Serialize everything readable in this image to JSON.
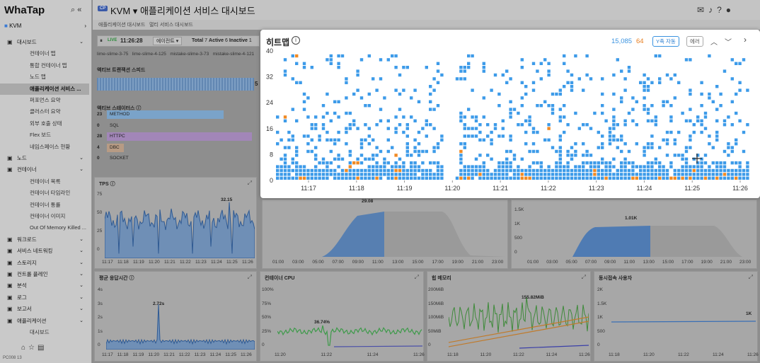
{
  "app": {
    "logo": "WhaTap",
    "project": "KVM",
    "project_badge": "CP",
    "title": "애플리케이션 서비스 대시보드"
  },
  "tabs": [
    "애플리케이션 대시보드",
    "멀티 서비스 대시보드"
  ],
  "sidebar": {
    "project": "KVM",
    "items": [
      {
        "label": "대시보드",
        "level": 0,
        "icon": "dashboard-icon"
      },
      {
        "label": "컨테이너 맵",
        "level": 1
      },
      {
        "label": "통합 컨테이너 맵",
        "level": 1
      },
      {
        "label": "노드 맵",
        "level": 1
      },
      {
        "label": "애플리케이션 서비스 ...",
        "level": 1,
        "active": true
      },
      {
        "label": "퍼포먼스 요약",
        "level": 1
      },
      {
        "label": "클러스터 요약",
        "level": 1
      },
      {
        "label": "외부 호출 상태",
        "level": 1
      },
      {
        "label": "Flex 보드",
        "level": 1
      },
      {
        "label": "네임스페이스 현황",
        "level": 1
      },
      {
        "label": "노드",
        "level": 0,
        "icon": "node-icon"
      },
      {
        "label": "컨테이너",
        "level": 0,
        "icon": "container-icon"
      },
      {
        "label": "컨테이너 목록",
        "level": 1
      },
      {
        "label": "컨테이너 타임라인",
        "level": 1
      },
      {
        "label": "컨테이너 통률",
        "level": 1
      },
      {
        "label": "컨테이너 이미지",
        "level": 1
      },
      {
        "label": "Out Of Memory Killed ...",
        "level": 1
      },
      {
        "label": "워크로드",
        "level": 0,
        "icon": "workload-icon"
      },
      {
        "label": "서비스 네트워킹",
        "level": 0,
        "icon": "network-icon"
      },
      {
        "label": "스토리지",
        "level": 0,
        "icon": "storage-icon"
      },
      {
        "label": "컨트롤 플레인",
        "level": 0,
        "icon": "control-plane-icon"
      },
      {
        "label": "분석",
        "level": 0,
        "icon": "analysis-icon"
      },
      {
        "label": "로그",
        "level": 0,
        "icon": "log-icon"
      },
      {
        "label": "보고서",
        "level": 0,
        "icon": "report-icon"
      },
      {
        "label": "애플리케이션",
        "level": 0,
        "icon": "code-icon"
      },
      {
        "label": "대시보드",
        "level": 1
      }
    ],
    "footer": "PC008 13"
  },
  "live": {
    "label": "LIVE",
    "time": "11:26:28",
    "filter": "에이전트",
    "total_label": "Total",
    "total": "7",
    "active_label": "Active",
    "active": "6",
    "inactive_label": "Inactive",
    "inactive": "1"
  },
  "agents": [
    "lime-slime-3-75",
    "lime-slime-4-125",
    "mistake-slime-3-73",
    "mistake-slime-4-121"
  ],
  "active_tx": {
    "title": "액티브 트랜잭션 스피드",
    "value": "5"
  },
  "active_status": {
    "title": "액티브 스테이터스",
    "rows": [
      {
        "count": "23",
        "label": "METHOD"
      },
      {
        "count": "0",
        "label": "SQL"
      },
      {
        "count": "28",
        "label": "HTTPC"
      },
      {
        "count": "4",
        "label": "DBC"
      },
      {
        "count": "0",
        "label": "SOCKET"
      }
    ]
  },
  "tps": {
    "title": "TPS",
    "peak": "32.15",
    "xticks": [
      "11:17",
      "11:18",
      "11:19",
      "11:20",
      "11:21",
      "11:22",
      "11:23",
      "11:24",
      "11:25",
      "11:26"
    ],
    "yticks": [
      "0",
      "25",
      "50",
      "75"
    ]
  },
  "mid_chart": {
    "peak": "29.08",
    "xticks": [
      "01:00",
      "03:00",
      "05:00",
      "07:00",
      "09:00",
      "11:00",
      "13:00",
      "15:00",
      "17:00",
      "19:00",
      "21:00",
      "23:00"
    ]
  },
  "right_chart": {
    "peak": "1.01K",
    "yticks": [
      "1.5K",
      "1K",
      "500",
      "0"
    ],
    "xticks": [
      "01:00",
      "03:00",
      "05:00",
      "07:00",
      "09:00",
      "11:00",
      "13:00",
      "15:00",
      "17:00",
      "19:00",
      "21:00",
      "23:00"
    ]
  },
  "avg_resp": {
    "title": "평균 응답시간",
    "peak": "2.72s",
    "yticks": [
      "4s",
      "3s",
      "2s",
      "1s",
      "0"
    ],
    "xticks": [
      "11:17",
      "11:18",
      "11:19",
      "11:20",
      "11:21",
      "11:22",
      "11:23",
      "11:24",
      "11:25",
      "11:26"
    ]
  },
  "container_cpu": {
    "title": "컨테이너 CPU",
    "peak": "36.74%",
    "yticks": [
      "100%",
      "75%",
      "50%",
      "25%",
      "0"
    ],
    "xticks": [
      "11:20",
      "11:22",
      "11:24",
      "11:26"
    ]
  },
  "heap": {
    "title": "힙 메모리",
    "peak": "155.82MiB",
    "yticks": [
      "200MiB",
      "150MiB",
      "100MiB",
      "50MiB",
      "0"
    ],
    "xticks": [
      "11:18",
      "11:20",
      "11:22",
      "11:24",
      "11:26"
    ]
  },
  "concurrent": {
    "title": "동시접속 사용자",
    "peak": "1K",
    "yticks": [
      "2K",
      "1.5K",
      "1K",
      "500",
      "0"
    ],
    "xticks": [
      "11:18",
      "11:20",
      "11:22",
      "11:24",
      "11:26"
    ]
  },
  "heatmap": {
    "title": "히트맵",
    "count_normal": "15,085",
    "count_error": "64",
    "y_auto": "Y축 자동",
    "error_btn": "에러",
    "yticks": [
      "0",
      "8",
      "16",
      "24",
      "32",
      "40"
    ],
    "xticks": [
      "11:17",
      "11:18",
      "11:19",
      "11:20",
      "11:21",
      "11:22",
      "11:23",
      "11:24",
      "11:25",
      "11:26"
    ],
    "colors": {
      "normal": "#3d9be9",
      "error": "#f08a24",
      "nav": "#444"
    }
  }
}
